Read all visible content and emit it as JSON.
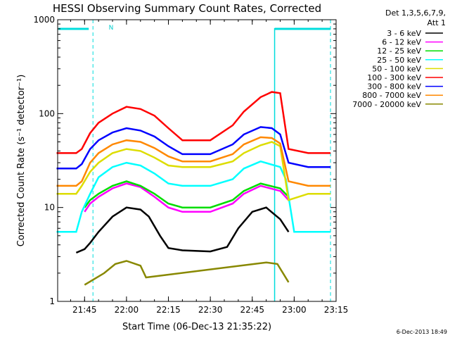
{
  "chart_data": {
    "type": "line",
    "title": "HESSI Observing Summary Count Rates, Corrected",
    "xlabel": "Start Time (06-Dec-13 21:35:22)",
    "ylabel": "Corrected Count Rate (s⁻¹ detector⁻¹)",
    "yscale": "log",
    "ylim": [
      1,
      1000
    ],
    "xlim": [
      "21:35:22",
      "23:15:00"
    ],
    "x_ticks": [
      "21:45",
      "22:00",
      "22:15",
      "22:30",
      "22:45",
      "23:00",
      "23:15"
    ],
    "y_ticks": [
      "1",
      "10",
      "100",
      "1000"
    ],
    "grid": false,
    "legend": {
      "position": "right",
      "header": [
        "Det 1,3,5,6,7,9,",
        "Att 1"
      ]
    },
    "series": [
      {
        "name": "3 - 6 keV",
        "color": "#000000",
        "x": [
          "21:42",
          "21:45",
          "21:47",
          "21:50",
          "21:55",
          "22:00",
          "22:05",
          "22:08",
          "22:12",
          "22:15",
          "22:20",
          "22:30",
          "22:36",
          "22:40",
          "22:45",
          "22:50",
          "22:55",
          "22:58"
        ],
        "y": [
          3.3,
          3.6,
          4.2,
          5.5,
          8,
          10,
          9.5,
          8,
          5,
          3.7,
          3.5,
          3.4,
          3.8,
          6,
          9,
          10,
          7.5,
          5.5
        ]
      },
      {
        "name": "6 - 12 keV",
        "color": "#ff00ff",
        "x": [
          "21:45",
          "21:47",
          "21:50",
          "21:55",
          "22:00",
          "22:05",
          "22:10",
          "22:15",
          "22:20",
          "22:30",
          "22:38",
          "22:42",
          "22:48",
          "22:55",
          "22:58"
        ],
        "y": [
          9,
          11,
          13,
          16,
          18,
          16.5,
          13,
          10,
          9,
          9,
          11,
          14,
          17,
          15,
          12
        ]
      },
      {
        "name": "12 - 25 keV",
        "color": "#00dd00",
        "x": [
          "21:45",
          "21:47",
          "21:50",
          "21:55",
          "22:00",
          "22:05",
          "22:10",
          "22:15",
          "22:20",
          "22:30",
          "22:38",
          "22:42",
          "22:48",
          "22:55",
          "22:58"
        ],
        "y": [
          10,
          12,
          14,
          17,
          19,
          17,
          14,
          11,
          10,
          10,
          12,
          15,
          18,
          16,
          13
        ]
      },
      {
        "name": "25 - 50 keV",
        "color": "#00ffff",
        "x": [
          "21:35",
          "21:42",
          "21:44",
          "21:47",
          "21:50",
          "21:55",
          "22:00",
          "22:05",
          "22:10",
          "22:15",
          "22:20",
          "22:30",
          "22:38",
          "22:42",
          "22:48",
          "22:55",
          "22:57",
          "23:00",
          "23:06",
          "23:13"
        ],
        "y": [
          5.5,
          5.5,
          9,
          14,
          21,
          27,
          30,
          28,
          23,
          18,
          17,
          17,
          20,
          26,
          31,
          27,
          20,
          5.5,
          5.5,
          5.5
        ]
      },
      {
        "name": "50 - 100 keV",
        "color": "#dddd00",
        "x": [
          "21:35",
          "21:42",
          "21:44",
          "21:47",
          "21:50",
          "21:55",
          "22:00",
          "22:05",
          "22:10",
          "22:15",
          "22:20",
          "22:30",
          "22:38",
          "22:42",
          "22:48",
          "22:52",
          "22:55",
          "22:58",
          "23:05",
          "23:13"
        ],
        "y": [
          14,
          14,
          17,
          24,
          30,
          38,
          42,
          40,
          34,
          28,
          27,
          27,
          31,
          38,
          46,
          50,
          45,
          12,
          14,
          14
        ]
      },
      {
        "name": "100 - 300 keV",
        "color": "#ff0000",
        "x": [
          "21:35",
          "21:42",
          "21:44",
          "21:47",
          "21:50",
          "21:55",
          "22:00",
          "22:05",
          "22:10",
          "22:15",
          "22:20",
          "22:30",
          "22:38",
          "22:42",
          "22:48",
          "22:52",
          "22:55",
          "22:58",
          "23:05",
          "23:13"
        ],
        "y": [
          38,
          38,
          42,
          62,
          80,
          100,
          118,
          112,
          95,
          70,
          52,
          52,
          75,
          105,
          150,
          170,
          165,
          42,
          38,
          38
        ]
      },
      {
        "name": "300 - 800 keV",
        "color": "#0000ff",
        "x": [
          "21:35",
          "21:42",
          "21:44",
          "21:47",
          "21:50",
          "21:55",
          "22:00",
          "22:05",
          "22:10",
          "22:15",
          "22:20",
          "22:30",
          "22:38",
          "22:42",
          "22:48",
          "22:52",
          "22:55",
          "22:58",
          "23:05",
          "23:13"
        ],
        "y": [
          26,
          26,
          29,
          42,
          52,
          63,
          70,
          66,
          57,
          45,
          37,
          37,
          47,
          60,
          72,
          70,
          60,
          30,
          27,
          27
        ]
      },
      {
        "name": "800 - 7000 keV",
        "color": "#ff8800",
        "x": [
          "21:35",
          "21:42",
          "21:44",
          "21:47",
          "21:50",
          "21:55",
          "22:00",
          "22:05",
          "22:10",
          "22:15",
          "22:20",
          "22:30",
          "22:38",
          "22:42",
          "22:48",
          "22:52",
          "22:55",
          "22:58",
          "23:05",
          "23:13"
        ],
        "y": [
          17,
          17,
          19,
          30,
          38,
          47,
          52,
          50,
          43,
          35,
          31,
          31,
          37,
          47,
          56,
          55,
          48,
          19,
          17,
          17
        ]
      },
      {
        "name": "7000 - 20000 keV",
        "color": "#888800",
        "x": [
          "21:45",
          "21:52",
          "21:56",
          "22:00",
          "22:05",
          "22:07",
          "22:50",
          "22:54",
          "22:58"
        ],
        "y": [
          1.5,
          2,
          2.5,
          2.7,
          2.4,
          1.8,
          2.6,
          2.5,
          1.6
        ]
      }
    ],
    "annotations": [
      {
        "text": "N"
      }
    ]
  },
  "footer": {
    "timestamp": "6-Dec-2013 18:49"
  }
}
